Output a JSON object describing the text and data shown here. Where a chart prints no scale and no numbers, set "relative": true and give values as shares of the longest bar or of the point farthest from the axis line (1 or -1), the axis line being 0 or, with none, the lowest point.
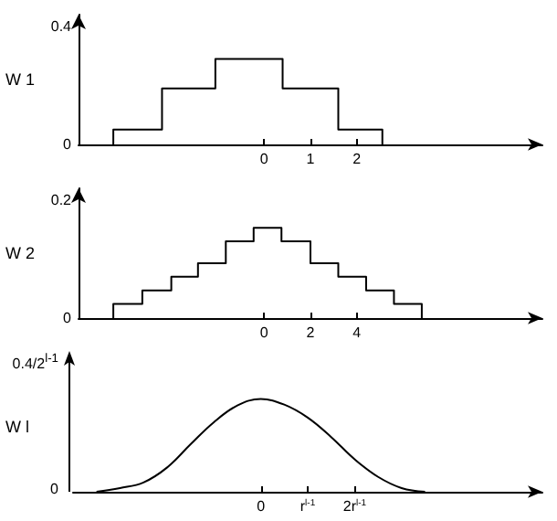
{
  "chart_data": [
    {
      "type": "step",
      "ylabel": "W 1",
      "x": [
        -3.25,
        -3.25,
        -2.2,
        -1.05,
        0.4,
        1.6,
        2.55
      ],
      "values": [
        0,
        0.05,
        0.19,
        0.29,
        0.19,
        0.05,
        0
      ],
      "color": "#000000",
      "xlim": [
        -4,
        6
      ],
      "xticks": [
        0,
        1,
        2
      ],
      "ylim": [
        0,
        0.44
      ],
      "yticks": [
        0,
        0.4
      ]
    },
    {
      "type": "step",
      "ylabel": "W 2",
      "x": [
        -6.5,
        -6.5,
        -5.25,
        -4.0,
        -2.85,
        -1.65,
        -0.45,
        0.75,
        2.0,
        3.2,
        4.4,
        5.6,
        6.8
      ],
      "values": [
        0,
        0.024,
        0.047,
        0.07,
        0.093,
        0.13,
        0.153,
        0.13,
        0.093,
        0.07,
        0.047,
        0.024,
        0
      ],
      "color": "#000000",
      "xlim": [
        -8,
        12
      ],
      "xticks": [
        0,
        2,
        4
      ],
      "ylim": [
        0,
        0.22
      ],
      "yticks": [
        0,
        0.2
      ]
    },
    {
      "type": "line",
      "ylabel": "W l",
      "relative": true,
      "annotations": [
        "0.4/2$^{l-1}$",
        "0"
      ],
      "categories": [
        null,
        null,
        null,
        null,
        null,
        null,
        null,
        null,
        "0",
        null,
        "r$^{l-1}$",
        null,
        "2r$^{l-1}$",
        null,
        null,
        null,
        null,
        null,
        null,
        null,
        null
      ],
      "values": [
        null,
        0,
        0.04,
        0.1,
        0.26,
        0.51,
        0.75,
        0.93,
        1,
        0.94,
        0.8,
        0.59,
        0.35,
        0.16,
        0.04,
        0,
        null,
        null,
        null,
        null,
        null
      ],
      "color": "#000000"
    }
  ]
}
